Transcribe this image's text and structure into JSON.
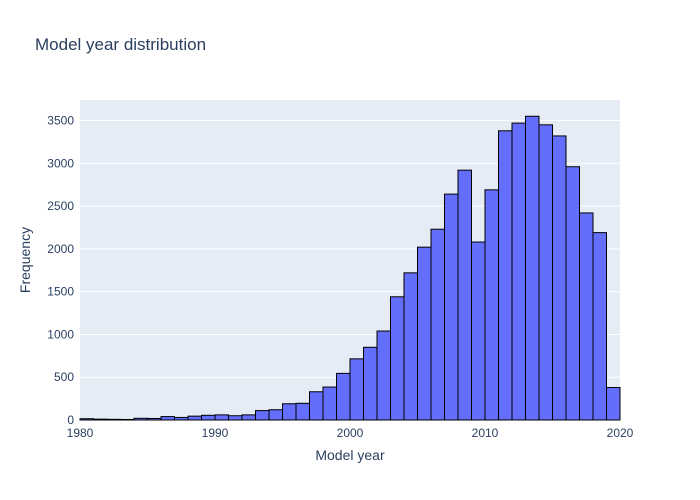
{
  "chart_data": {
    "type": "bar",
    "title": "Model year distribution",
    "xlabel": "Model year",
    "ylabel": "Frequency",
    "xlim": [
      1980,
      2020
    ],
    "ylim": [
      0,
      3740
    ],
    "bin_width": 1,
    "x_ticks": [
      1980,
      1990,
      2000,
      2010,
      2020
    ],
    "y_ticks": [
      0,
      500,
      1000,
      1500,
      2000,
      2500,
      3000,
      3500
    ],
    "grid": true,
    "legend": "none",
    "colors": {
      "bar_fill": "#636efa",
      "bar_edge": "#000000",
      "plot_bg": "#e5ecf6",
      "grid": "#ffffff",
      "text": "#2a3f5f"
    },
    "bins": [
      {
        "x": 1980,
        "value": 15
      },
      {
        "x": 1981,
        "value": 10
      },
      {
        "x": 1982,
        "value": 8
      },
      {
        "x": 1983,
        "value": 6
      },
      {
        "x": 1984,
        "value": 20
      },
      {
        "x": 1985,
        "value": 18
      },
      {
        "x": 1986,
        "value": 40
      },
      {
        "x": 1987,
        "value": 30
      },
      {
        "x": 1988,
        "value": 45
      },
      {
        "x": 1989,
        "value": 55
      },
      {
        "x": 1990,
        "value": 60
      },
      {
        "x": 1991,
        "value": 50
      },
      {
        "x": 1992,
        "value": 60
      },
      {
        "x": 1993,
        "value": 110
      },
      {
        "x": 1994,
        "value": 120
      },
      {
        "x": 1995,
        "value": 190
      },
      {
        "x": 1996,
        "value": 195
      },
      {
        "x": 1997,
        "value": 330
      },
      {
        "x": 1998,
        "value": 385
      },
      {
        "x": 1999,
        "value": 545
      },
      {
        "x": 2000,
        "value": 715
      },
      {
        "x": 2001,
        "value": 850
      },
      {
        "x": 2002,
        "value": 1040
      },
      {
        "x": 2003,
        "value": 1440
      },
      {
        "x": 2004,
        "value": 1720
      },
      {
        "x": 2005,
        "value": 2020
      },
      {
        "x": 2006,
        "value": 2230
      },
      {
        "x": 2007,
        "value": 2640
      },
      {
        "x": 2008,
        "value": 2920
      },
      {
        "x": 2009,
        "value": 2080
      },
      {
        "x": 2010,
        "value": 2690
      },
      {
        "x": 2011,
        "value": 3380
      },
      {
        "x": 2012,
        "value": 3470
      },
      {
        "x": 2013,
        "value": 3550
      },
      {
        "x": 2014,
        "value": 3450
      },
      {
        "x": 2015,
        "value": 3320
      },
      {
        "x": 2016,
        "value": 2960
      },
      {
        "x": 2017,
        "value": 2420
      },
      {
        "x": 2018,
        "value": 2190
      },
      {
        "x": 2019,
        "value": 380
      }
    ]
  }
}
